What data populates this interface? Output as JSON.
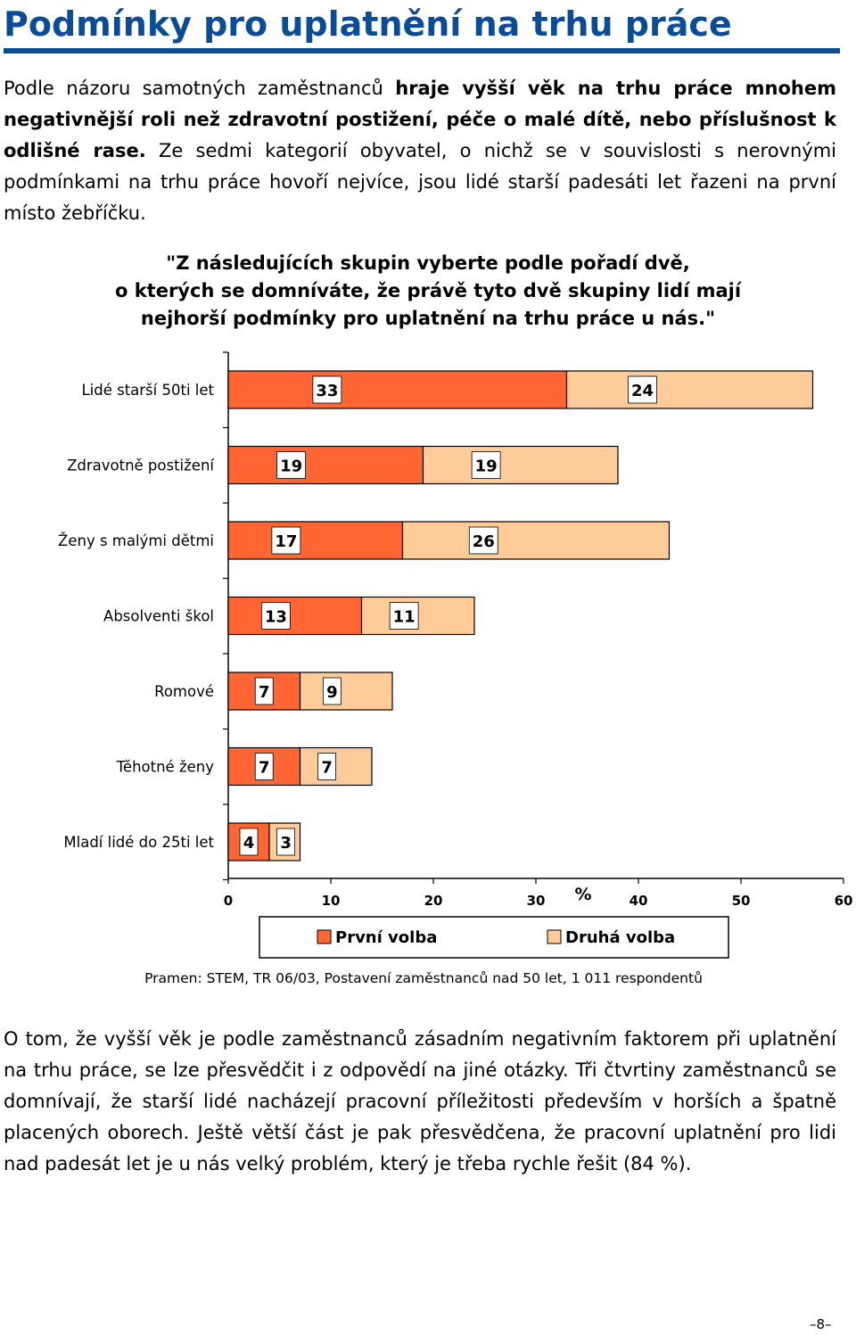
{
  "heading": "Podmínky pro uplatnění na trhu práce",
  "intro": {
    "part1": "Podle názoru samotných zaměstnanců ",
    "bold": "hraje vyšší věk na trhu práce mnohem negativnější roli než zdravotní postižení, péče o malé dítě, nebo příslušnost k odlišné rase.",
    "part2": " Ze sedmi kategorií obyvatel, o nichž se v souvislosti s nerovnými podmínkami na trhu práce hovoří nejvíce, jsou lidé starší padesáti let řazeni na první místo žebříčku."
  },
  "question": {
    "line1": "\"Z následujících skupin vyberte podle pořadí dvě,",
    "line2": "o kterých se domníváte, že právě tyto dvě skupiny lidí mají",
    "line3": "nejhorší podmínky pro uplatnění na trhu práce u nás.\""
  },
  "chart_data": {
    "type": "bar",
    "orientation": "horizontal",
    "stacked": true,
    "categories": [
      "Lidé starší 50ti let",
      "Zdravotně postižení",
      "Ženy s malými dětmi",
      "Absolventi škol",
      "Romové",
      "Těhotné ženy",
      "Mladí lidé do 25ti let"
    ],
    "series": [
      {
        "name": "První volba",
        "values": [
          33,
          19,
          17,
          13,
          7,
          7,
          4
        ],
        "color": "#ff6633"
      },
      {
        "name": "Druhá volba",
        "values": [
          24,
          19,
          26,
          11,
          9,
          7,
          3
        ],
        "color": "#ffcc99"
      }
    ],
    "xlabel": "%",
    "xlim": [
      0,
      60
    ],
    "xticks": [
      "0",
      "10",
      "20",
      "30",
      "40",
      "50",
      "60"
    ],
    "grid": false,
    "legend_position": "bottom"
  },
  "source": "Pramen: STEM, TR 06/03, Postavení zaměstnanců nad 50 let, 1 011 respondentů",
  "closing": "O tom, že vyšší věk je podle zaměstnanců zásadním negativním faktorem při uplatnění na trhu práce, se lze přesvědčit i z odpovědí na jiné otázky. Tři čtvrtiny zaměstnanců se domnívají, že starší lidé nacházejí pracovní příležitosti především v horších a špatně placených oborech. Ještě větší část je pak přesvědčena, že pracovní uplatnění pro lidi nad padesát let je u nás velký problém, který je třeba rychle řešit (84 %).",
  "page_number": "–8–"
}
